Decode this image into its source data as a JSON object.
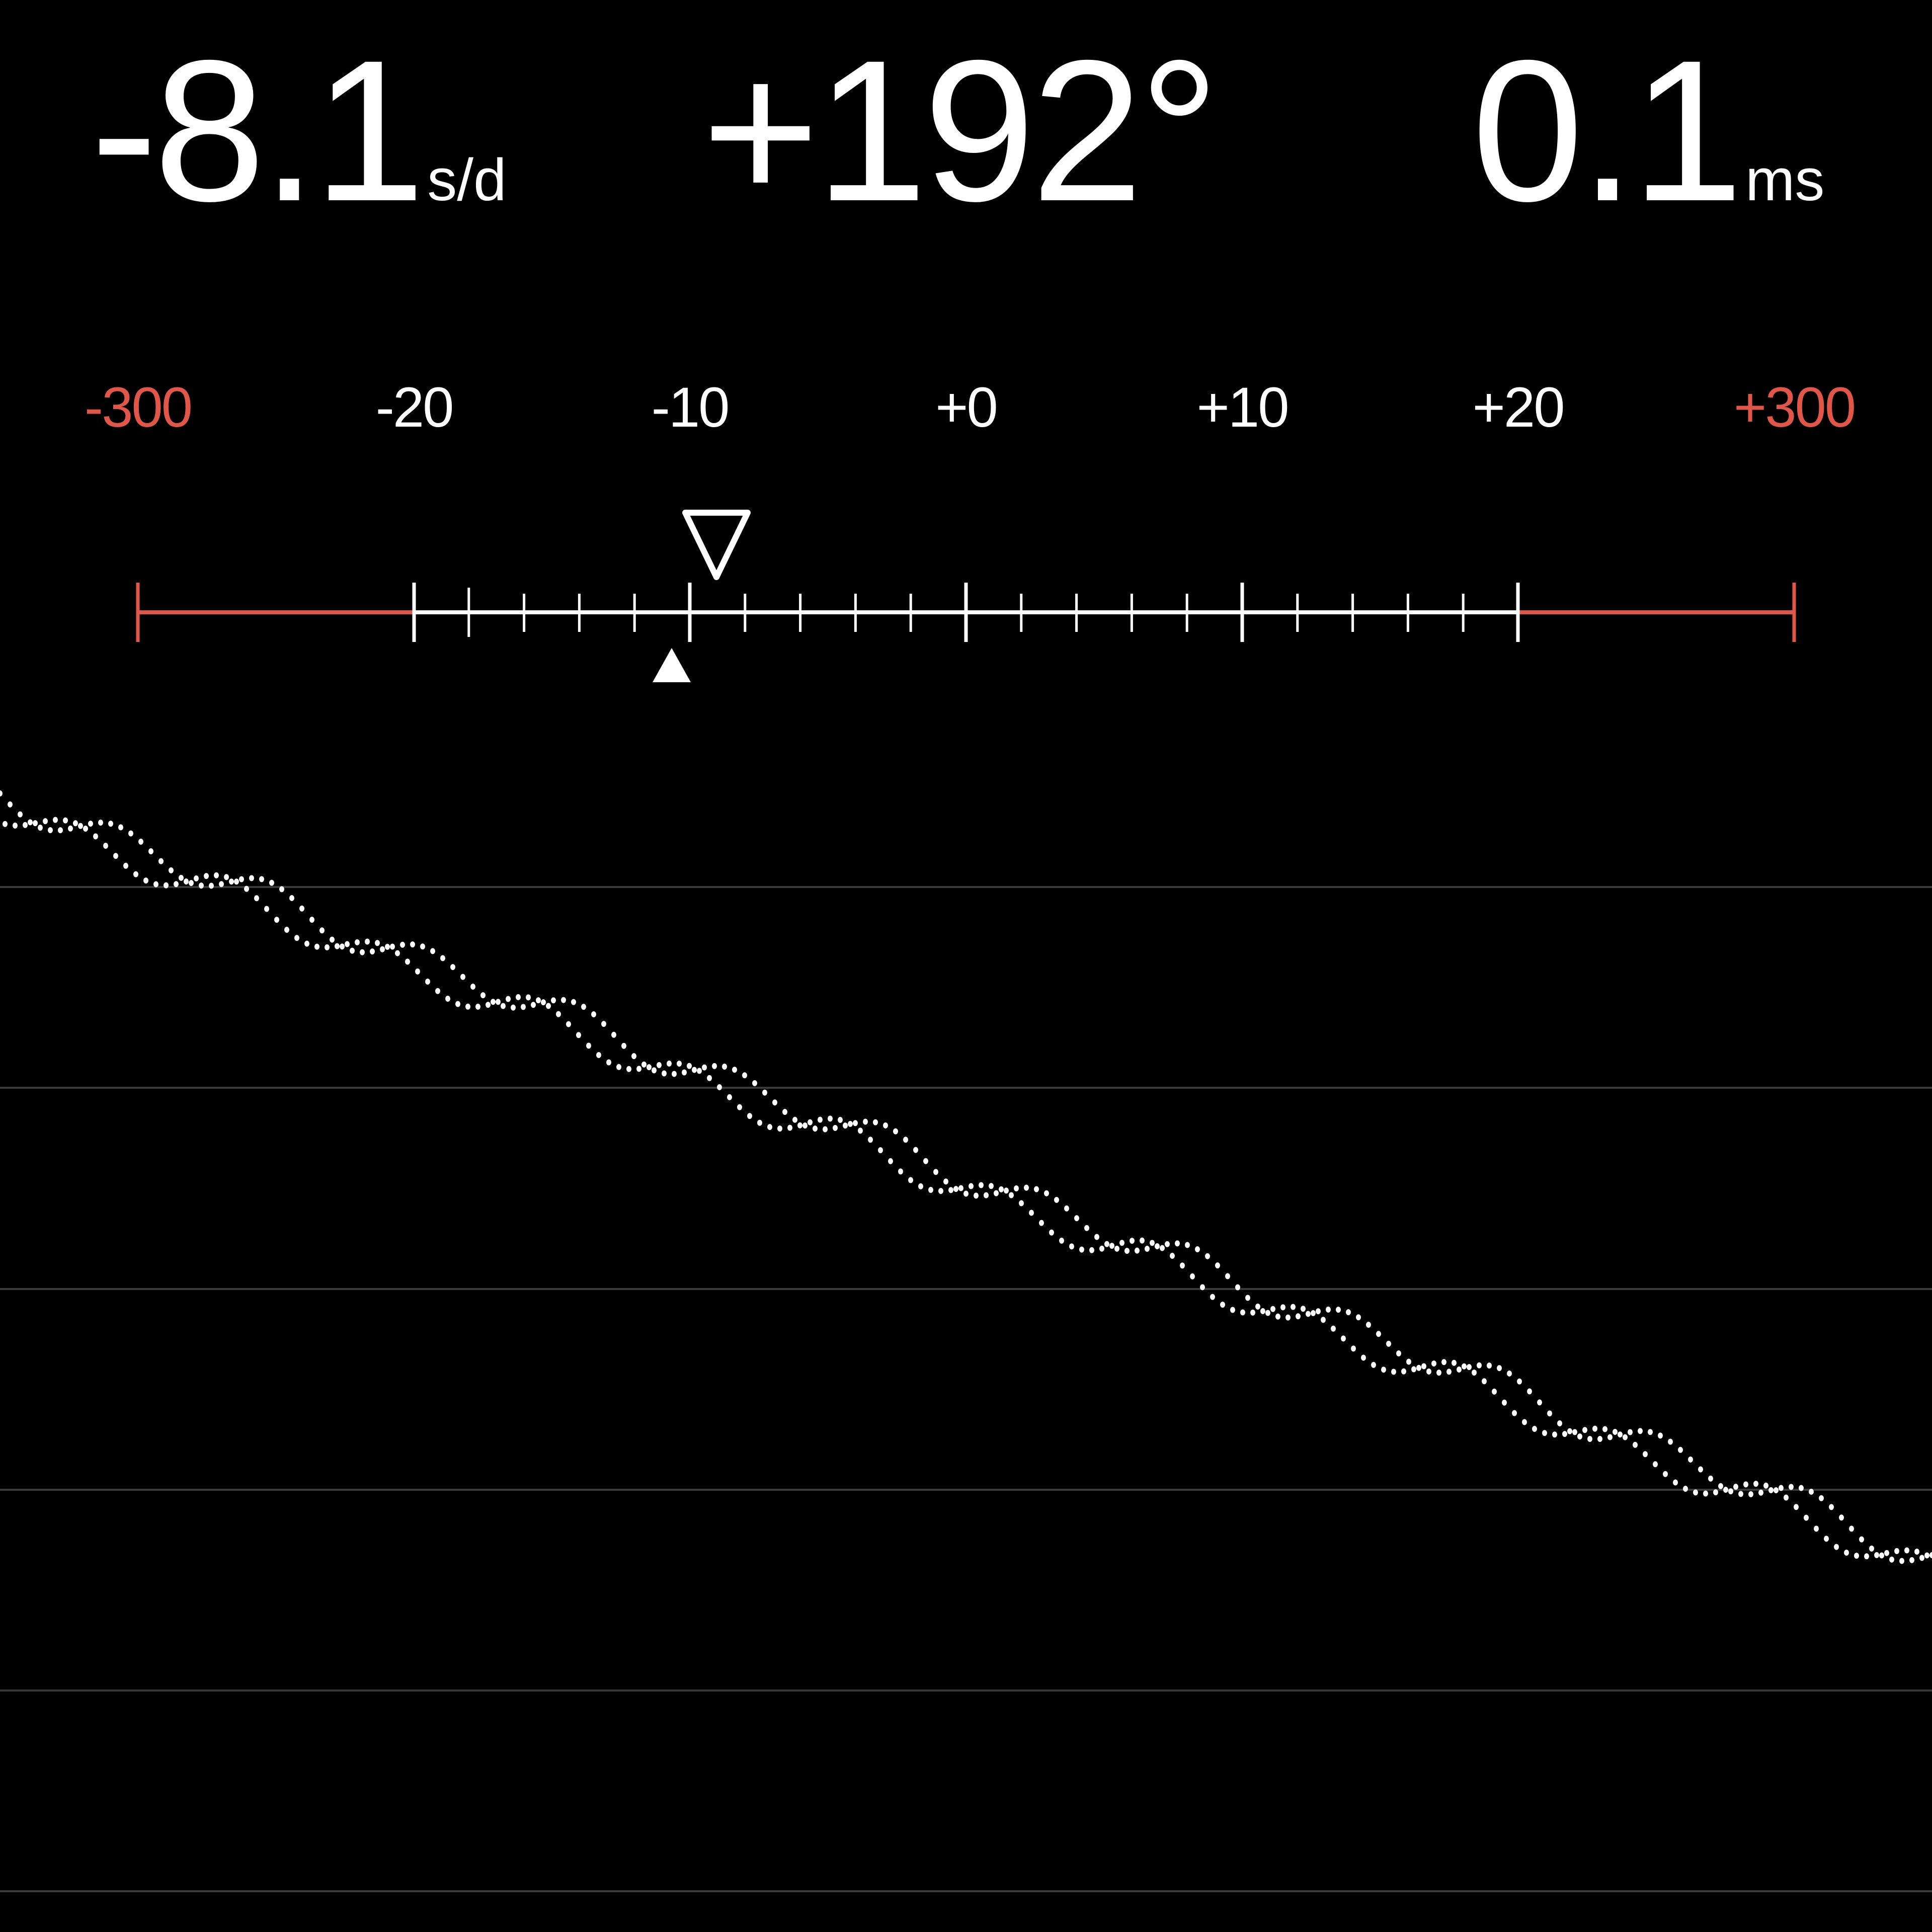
{
  "readouts": {
    "rate": {
      "value": "-8.1",
      "unit": "s/d"
    },
    "amplitude": {
      "value": "+192°"
    },
    "beat_error": {
      "value": "0.1",
      "unit": "ms"
    }
  },
  "scale": {
    "labels": [
      "-300",
      "-20",
      "-10",
      "+0",
      "+10",
      "+20",
      "+300"
    ],
    "colors": {
      "normal": "#ffffff",
      "out_of_range": "#e0574a"
    },
    "current_rate": -8.1,
    "reference_marker": -10.5
  },
  "trace": {
    "rate_s_per_day": -8.1,
    "dot_color": "#ffffff",
    "grid_color": "#3a3a3a"
  }
}
